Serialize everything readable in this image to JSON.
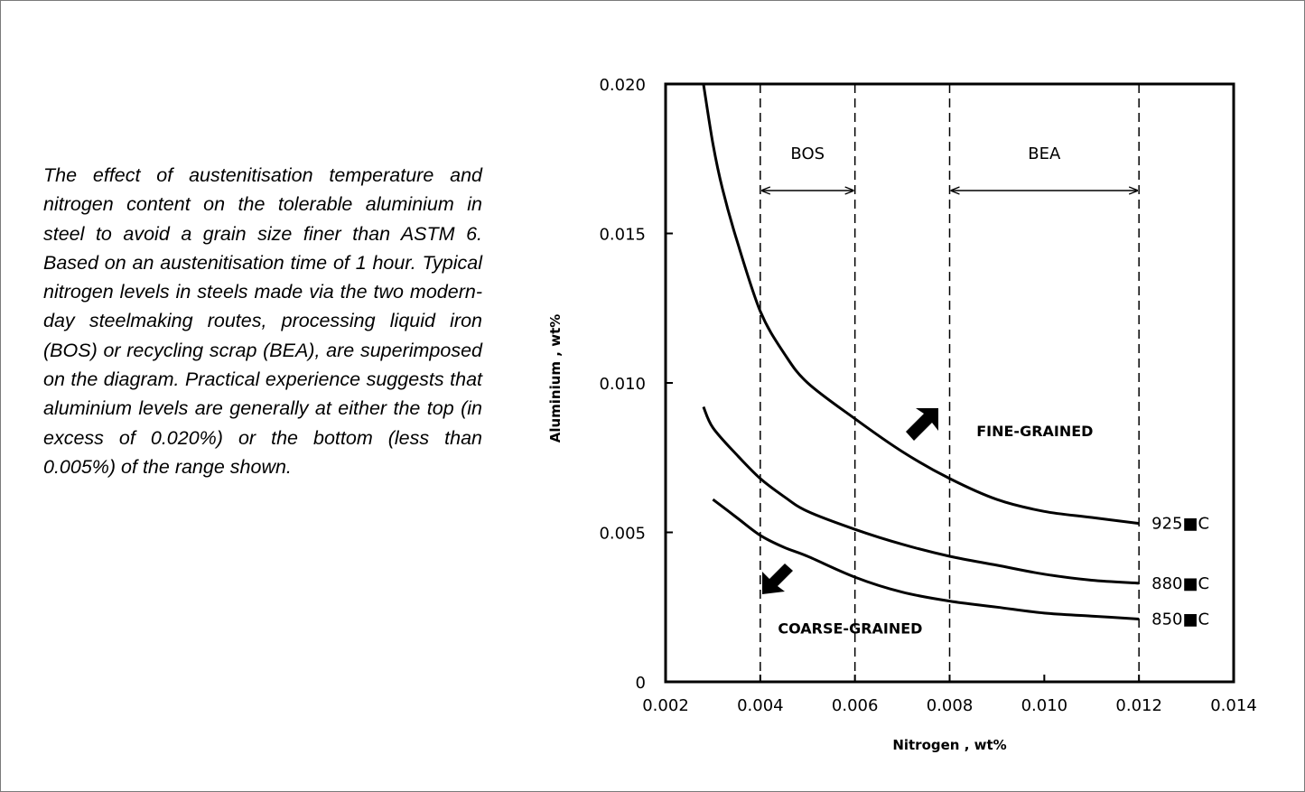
{
  "caption": "The effect of austenitisation temperature and nitrogen content on the tolerable aluminium in steel to avoid a grain size finer than ASTM 6.  Based on an austenitisation time of 1 hour.  Typical nitrogen levels in steels made via the two modern-day steelmaking routes, processing liquid iron (BOS) or recycling scrap (BEA), are superimposed on the diagram.  Practical experience suggests that aluminium levels are generally at either the top (in excess of 0.020%) or the bottom (less than 0.005%) of the range shown.",
  "chart_data": {
    "type": "line",
    "title": "",
    "xlabel": "Nitrogen , wt%",
    "ylabel": "Aluminium , wt%",
    "xlim": [
      0.002,
      0.014
    ],
    "ylim": [
      0,
      0.02
    ],
    "x_ticks": [
      "0.002",
      "0.004",
      "0.006",
      "0.008",
      "0.010",
      "0.012",
      "0.014"
    ],
    "y_ticks": [
      "0",
      "0.005",
      "0.010",
      "0.015",
      "0.020"
    ],
    "grid": false,
    "vertical_lines": [
      0.004,
      0.006,
      0.008,
      0.012
    ],
    "regions": [
      {
        "label": "BOS",
        "x_start": 0.004,
        "x_end": 0.006
      },
      {
        "label": "BEA",
        "x_start": 0.008,
        "x_end": 0.012
      }
    ],
    "annotations": [
      {
        "text": "FINE-GRAINED",
        "x": 0.0098,
        "y": 0.0084
      },
      {
        "text": "COARSE-GRAINED",
        "x": 0.0059,
        "y": 0.0018
      }
    ],
    "series": [
      {
        "name": "925 °C",
        "label": "925■C",
        "x": [
          0.0028,
          0.003,
          0.0032,
          0.0035,
          0.004,
          0.0045,
          0.005,
          0.006,
          0.007,
          0.008,
          0.009,
          0.01,
          0.011,
          0.012
        ],
        "y": [
          0.02,
          0.018,
          0.0165,
          0.0148,
          0.0124,
          0.011,
          0.01,
          0.0088,
          0.0077,
          0.0068,
          0.0061,
          0.0057,
          0.0055,
          0.0053
        ]
      },
      {
        "name": "880 °C",
        "label": "880■C",
        "x": [
          0.0028,
          0.003,
          0.0035,
          0.004,
          0.0045,
          0.005,
          0.006,
          0.007,
          0.008,
          0.009,
          0.01,
          0.011,
          0.012
        ],
        "y": [
          0.0092,
          0.0085,
          0.0076,
          0.0068,
          0.0062,
          0.0057,
          0.0051,
          0.0046,
          0.0042,
          0.0039,
          0.0036,
          0.0034,
          0.0033
        ]
      },
      {
        "name": "850 °C",
        "label": "850■C",
        "x": [
          0.003,
          0.0035,
          0.004,
          0.0045,
          0.005,
          0.006,
          0.007,
          0.008,
          0.009,
          0.01,
          0.011,
          0.012
        ],
        "y": [
          0.0061,
          0.0055,
          0.0049,
          0.0045,
          0.0042,
          0.0035,
          0.003,
          0.0027,
          0.0025,
          0.0023,
          0.0022,
          0.0021
        ]
      }
    ]
  }
}
